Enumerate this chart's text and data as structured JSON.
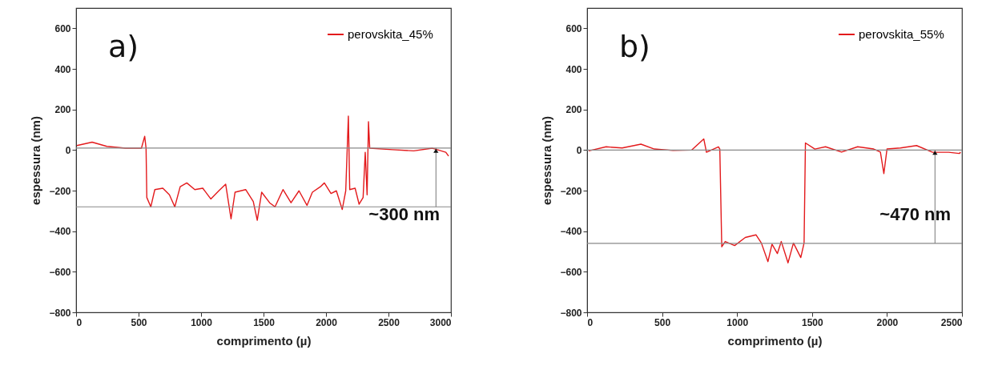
{
  "chart_data": [
    {
      "type": "line",
      "xlabel": "comprimento (µ)",
      "ylabel": "espessura (nm)",
      "xlim": [
        0,
        3000
      ],
      "ylim": [
        -800,
        700
      ],
      "xticks": [
        0,
        500,
        1000,
        1500,
        2000,
        2500,
        3000
      ],
      "yticks": [
        -800,
        -600,
        -400,
        -200,
        0,
        200,
        400,
        600
      ],
      "grid": false,
      "legend": "top right",
      "series": [
        {
          "name": "perovskita_45%",
          "color": "#e31a1c",
          "x": [
            6,
            128,
            246,
            395,
            523,
            549,
            560,
            566,
            598,
            630,
            694,
            747,
            790,
            833,
            886,
            950,
            1014,
            1078,
            1142,
            1197,
            1240,
            1272,
            1357,
            1418,
            1450,
            1485,
            1549,
            1592,
            1656,
            1720,
            1784,
            1848,
            1891,
            1955,
            1987,
            2040,
            2083,
            2130,
            2158,
            2179,
            2190,
            2233,
            2265,
            2297,
            2314,
            2329,
            2340,
            2350,
            2532,
            2702,
            2852,
            2959,
            2981
          ],
          "values": [
            22,
            39,
            18,
            9,
            9,
            68,
            9,
            -234,
            -280,
            -195,
            -188,
            -221,
            -280,
            -181,
            -162,
            -195,
            -188,
            -241,
            -201,
            -168,
            -339,
            -208,
            -195,
            -254,
            -346,
            -208,
            -260,
            -280,
            -195,
            -260,
            -201,
            -273,
            -208,
            -181,
            -162,
            -214,
            -201,
            -293,
            -201,
            167,
            -195,
            -188,
            -267,
            -234,
            -11,
            -221,
            140,
            9,
            2,
            -4,
            9,
            -11,
            -30
          ]
        }
      ],
      "ref_lines": [
        {
          "axis": "y",
          "value": 10,
          "color": "#888888"
        },
        {
          "axis": "y",
          "value": -280,
          "color": "#888888"
        }
      ],
      "annotations": [
        "a)",
        {
          "text": "~300 nm",
          "x": 2880,
          "y": 10
        }
      ]
    },
    {
      "type": "line",
      "xlabel": "comprimento (µ)",
      "ylabel": "espessura (nm)",
      "xlim": [
        0,
        2500
      ],
      "ylim": [
        -800,
        700
      ],
      "xticks": [
        0,
        500,
        1000,
        1500,
        2000,
        2500
      ],
      "yticks": [
        -800,
        -600,
        -400,
        -200,
        0,
        200,
        400,
        600
      ],
      "grid": false,
      "legend": "top right",
      "series": [
        {
          "name": "perovskita_55%",
          "color": "#e31a1c",
          "x": [
            11,
            127,
            234,
            359,
            448,
            573,
            698,
            778,
            796,
            876,
            885,
            898,
            921,
            984,
            1055,
            1126,
            1162,
            1206,
            1233,
            1269,
            1295,
            1340,
            1376,
            1425,
            1447,
            1456,
            1519,
            1590,
            1697,
            1804,
            1911,
            1956,
            1979,
            2000,
            2090,
            2197,
            2304,
            2411,
            2482,
            2491
          ],
          "values": [
            -4,
            16,
            10,
            29,
            5,
            -2,
            0,
            55,
            -11,
            16,
            5,
            -477,
            -451,
            -471,
            -431,
            -418,
            -458,
            -550,
            -464,
            -510,
            -451,
            -556,
            -458,
            -530,
            -458,
            35,
            5,
            16,
            -10,
            16,
            5,
            -10,
            -116,
            5,
            10,
            22,
            -11,
            -11,
            -17,
            -11
          ]
        }
      ],
      "ref_lines": [
        {
          "axis": "y",
          "value": 0,
          "color": "#888888"
        },
        {
          "axis": "y",
          "value": -460,
          "color": "#888888"
        }
      ],
      "annotations": [
        "b)",
        {
          "text": "~470 nm",
          "x": 2320,
          "y": 0
        }
      ]
    }
  ]
}
